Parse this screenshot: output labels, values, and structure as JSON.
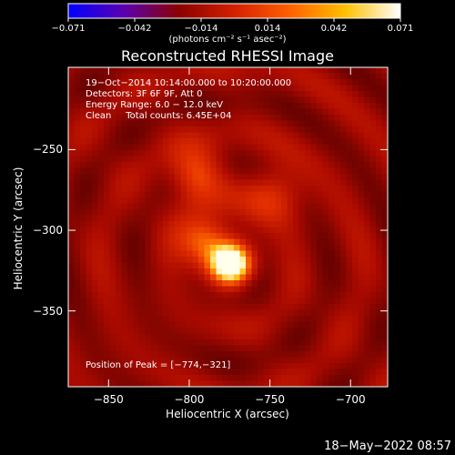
{
  "colorbar": {
    "ticks": [
      "−0.071",
      "−0.042",
      "−0.014",
      "0.014",
      "0.042",
      "0.071"
    ],
    "units": "(photons cm⁻² s⁻¹ asec⁻²)",
    "colors": [
      "#0000ff",
      "#5a00b0",
      "#8b0000",
      "#d42000",
      "#ff6000",
      "#ffc000",
      "#ffffff"
    ]
  },
  "annotation": {
    "line1": "19−Oct−2014 10:14:00.000 to 10:20:00.000",
    "line2": "Detectors: 3F 6F 9F, Att 0",
    "line3": "Energy Range: 6.0 − 12.0 keV",
    "line4": "Clean     Total counts: 6.45E+04",
    "peak": "Position of Peak = [−774,−321]"
  },
  "footer": {
    "timestamp": "18−May−2022 08:57"
  },
  "chart_data": {
    "type": "heatmap",
    "title": "Reconstructed RHESSI Image",
    "xlabel": "Heliocentric X (arcsec)",
    "ylabel": "Heliocentric Y (arcsec)",
    "xlim": [
      -875,
      -677
    ],
    "ylim": [
      -397,
      -199
    ],
    "xticks": [
      -850,
      -800,
      -750,
      -700
    ],
    "yticks": [
      -250,
      -300,
      -350
    ],
    "xtick_labels": [
      "−850",
      "−800",
      "−750",
      "−700"
    ],
    "ytick_labels": [
      "−250",
      "−300",
      "−350"
    ],
    "clim": [
      -0.071,
      0.071
    ],
    "peak": {
      "x": -774,
      "y": -321
    },
    "sources": [
      {
        "x": -774,
        "y": -321,
        "amp": 0.068,
        "sigma": 9
      },
      {
        "x": -790,
        "y": -307,
        "amp": 0.035,
        "sigma": 11
      },
      {
        "x": -796,
        "y": -265,
        "amp": 0.028,
        "sigma": 12
      },
      {
        "x": -748,
        "y": -278,
        "amp": 0.02,
        "sigma": 13
      }
    ]
  }
}
